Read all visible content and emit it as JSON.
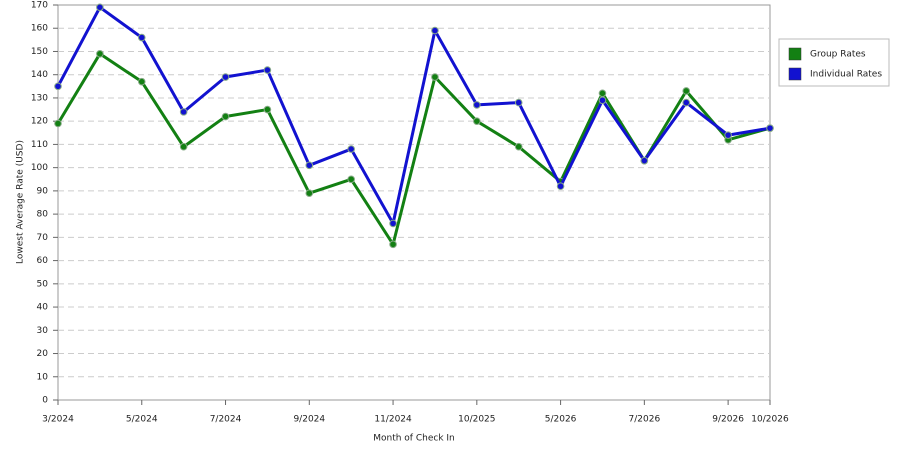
{
  "chart_data": {
    "type": "line",
    "y_label": "Lowest Average Rate (USD)",
    "x_label": "Month of Check In",
    "categories": [
      "3/2024",
      null,
      "5/2024",
      null,
      "7/2024",
      null,
      "9/2024",
      null,
      "11/2024",
      null,
      "10/2025",
      null,
      "5/2026",
      null,
      "7/2026",
      null,
      "9/2026",
      "10/2026"
    ],
    "series": [
      {
        "name": "Group Rates",
        "color": "#138013",
        "values": [
          119,
          149,
          137,
          109,
          122,
          125,
          89,
          95,
          67,
          139,
          120,
          109,
          94,
          132,
          103,
          133,
          112,
          117
        ]
      },
      {
        "name": "Individual Rates",
        "color": "#1212d0",
        "values": [
          135,
          169,
          156,
          124,
          139,
          142,
          101,
          108,
          76,
          159,
          127,
          128,
          92,
          129,
          103,
          128,
          114,
          117
        ]
      }
    ],
    "ylim": [
      0,
      170
    ],
    "yticks": [
      0,
      10,
      20,
      30,
      40,
      50,
      60,
      70,
      80,
      90,
      100,
      110,
      120,
      130,
      140,
      150,
      160,
      170
    ],
    "grid": true,
    "legend": "right"
  }
}
